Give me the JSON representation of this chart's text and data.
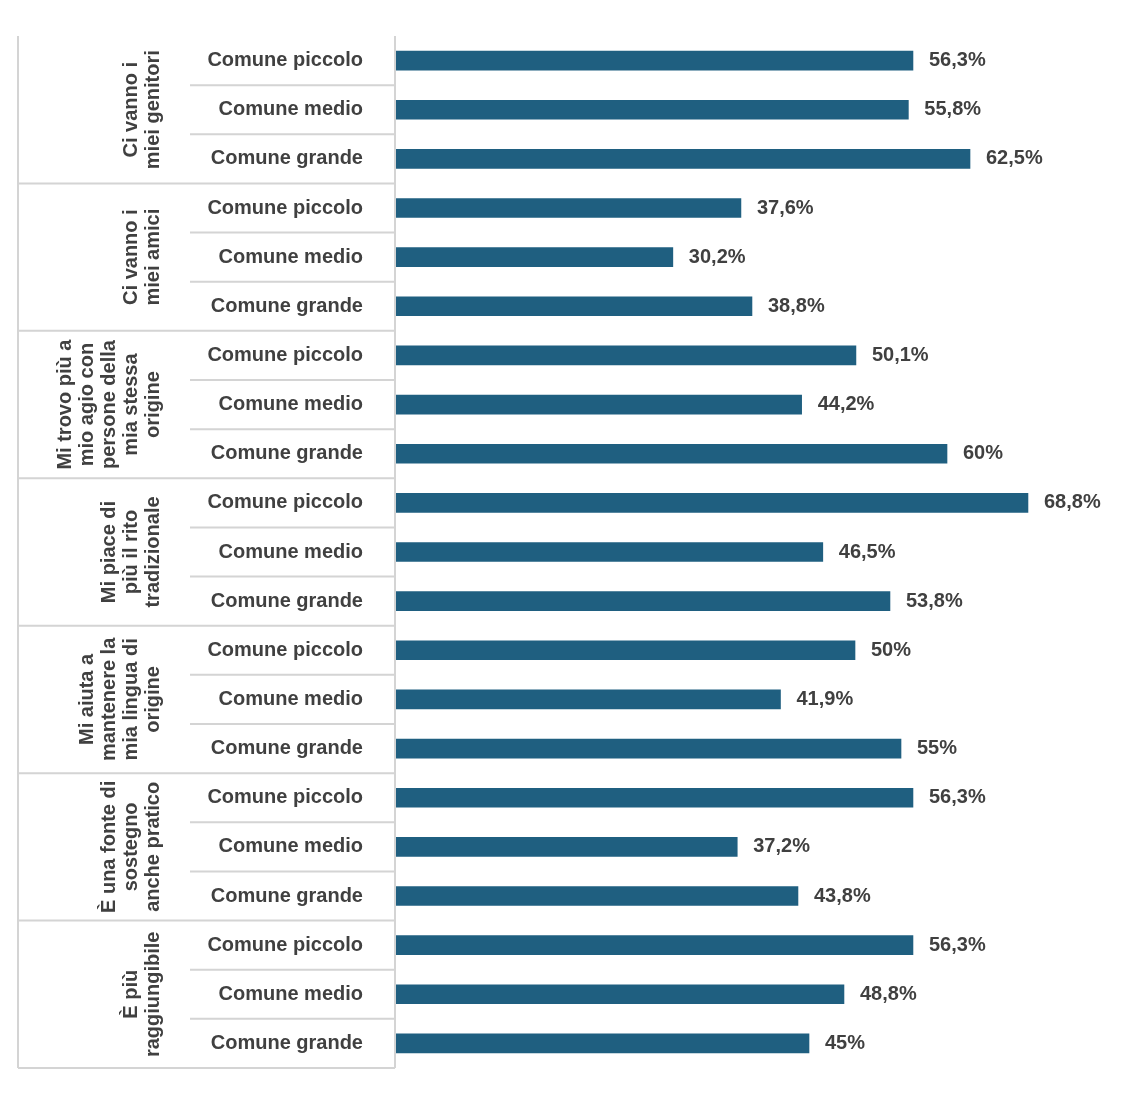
{
  "chart_data": {
    "type": "bar",
    "orientation": "horizontal",
    "categories": [
      "Comune piccolo",
      "Comune medio",
      "Comune grande",
      "Comune piccolo",
      "Comune medio",
      "Comune grande",
      "Comune piccolo",
      "Comune medio",
      "Comune grande",
      "Comune piccolo",
      "Comune medio",
      "Comune grande",
      "Comune piccolo",
      "Comune medio",
      "Comune grande",
      "Comune piccolo",
      "Comune medio",
      "Comune grande",
      "Comune piccolo",
      "Comune medio",
      "Comune grande"
    ],
    "values": [
      56.3,
      55.8,
      62.5,
      37.6,
      30.2,
      38.8,
      50.1,
      44.2,
      60,
      68.8,
      46.5,
      53.8,
      50,
      41.9,
      55,
      56.3,
      37.2,
      43.8,
      56.3,
      48.8,
      45
    ],
    "value_labels": [
      "56,3%",
      "55,8%",
      "62,5%",
      "37,6%",
      "30,2%",
      "38,8%",
      "50,1%",
      "44,2%",
      "60%",
      "68,8%",
      "46,5%",
      "53,8%",
      "50%",
      "41,9%",
      "55%",
      "56,3%",
      "37,2%",
      "43,8%",
      "56,3%",
      "48,8%",
      "45%"
    ],
    "color": "#1f5f80",
    "tick_labels": "y",
    "legend": false,
    "annotations": [
      "Ci vanno i miei genitori",
      "Ci vanno i miei amici",
      "Mi trovo più a mio agio con persone della mia stessa origine",
      "Mi piace di più il rito tradizionale",
      "Mi aiuta a mantenere la mia lingua di origine",
      "È una fonte di sostegno anche pratico",
      "È più raggiungibile"
    ]
  }
}
